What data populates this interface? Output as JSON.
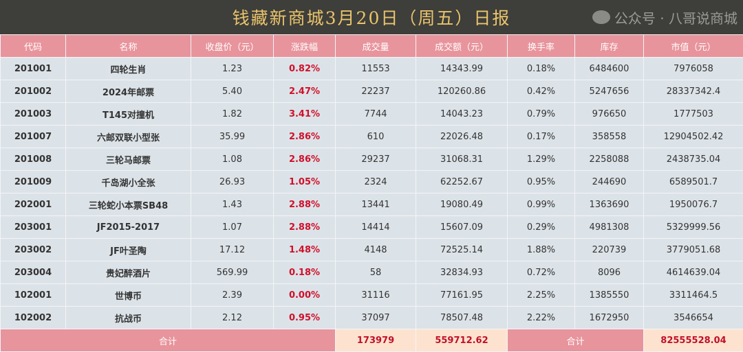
{
  "title": "钱藏新商城3月20日（周五）日报",
  "columns": [
    "代码",
    "名称",
    "收盘价（元）",
    "涨跌幅",
    "成交量",
    "成交额（元）",
    "换手率",
    "库存",
    "市值（元）"
  ],
  "rows": [
    [
      "201001",
      "四轮生肖",
      "1.23",
      "0.82%",
      "11553",
      "14343.99",
      "0.18%",
      "6484600",
      "7976058"
    ],
    [
      "201002",
      "2024年邮票",
      "5.40",
      "2.47%",
      "22237",
      "120260.86",
      "0.42%",
      "5247656",
      "28337342.4"
    ],
    [
      "201003",
      "T145对撞机",
      "1.82",
      "3.41%",
      "7744",
      "14043.23",
      "0.79%",
      "976650",
      "1777503"
    ],
    [
      "201007",
      "六邮双联小型张",
      "35.99",
      "2.86%",
      "610",
      "22026.48",
      "0.17%",
      "358558",
      "12904502.42"
    ],
    [
      "201008",
      "三轮马邮票",
      "1.08",
      "2.86%",
      "29237",
      "31068.31",
      "1.29%",
      "2258088",
      "2438735.04"
    ],
    [
      "201009",
      "千岛湖小全张",
      "26.93",
      "1.05%",
      "2324",
      "62252.67",
      "0.95%",
      "244690",
      "6589501.7"
    ],
    [
      "202001",
      "三轮蛇小本票SB48",
      "1.43",
      "2.88%",
      "13441",
      "19080.49",
      "0.99%",
      "1363690",
      "1950076.7"
    ],
    [
      "203001",
      "JF2015-2017",
      "1.07",
      "2.88%",
      "14414",
      "15607.09",
      "0.29%",
      "4981308",
      "5329999.56"
    ],
    [
      "203002",
      "JF叶圣陶",
      "17.12",
      "1.48%",
      "4148",
      "72525.14",
      "1.88%",
      "220739",
      "3779051.68"
    ],
    [
      "203004",
      "贵妃醉酒片",
      "569.99",
      "0.18%",
      "58",
      "32834.93",
      "0.72%",
      "8096",
      "4614639.04"
    ],
    [
      "102001",
      "世博币",
      "2.39",
      "0.00%",
      "31116",
      "77161.95",
      "2.25%",
      "1385550",
      "3311464.5"
    ],
    [
      "102002",
      "抗战币",
      "2.12",
      "0.95%",
      "37097",
      "78507.48",
      "2.22%",
      "1672950",
      "3546654"
    ]
  ],
  "total": {
    "label": "合计",
    "volume": "173979",
    "amount": "559712.62",
    "label2": "合计",
    "market_value": "82555528.04"
  },
  "watermark": "公众号 · 八哥说商城"
}
